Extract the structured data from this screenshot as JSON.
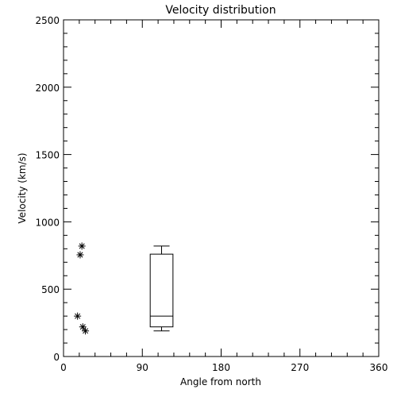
{
  "chart_data": {
    "type": "scatter",
    "title": "Velocity distribution",
    "xlabel": "Angle from north",
    "ylabel": "Velocity (km/s)",
    "xlim": [
      0,
      360
    ],
    "ylim": [
      0,
      2500
    ],
    "x_ticks": [
      0,
      90,
      180,
      270,
      360
    ],
    "y_ticks": [
      0,
      500,
      1000,
      1500,
      2000,
      2500
    ],
    "x_tick_labels": [
      "0",
      "90",
      "180",
      "270",
      "360"
    ],
    "y_tick_labels": [
      "0",
      "500",
      "1000",
      "1500",
      "2000",
      "2500"
    ],
    "grid": false,
    "points": [
      {
        "x": 21,
        "y": 820
      },
      {
        "x": 19,
        "y": 755
      },
      {
        "x": 16,
        "y": 300
      },
      {
        "x": 22,
        "y": 220
      },
      {
        "x": 25,
        "y": 190
      }
    ],
    "boxplot": {
      "x_center": 112,
      "x_width": 26,
      "min": 190,
      "q1": 220,
      "median": 300,
      "q3": 760,
      "max": 820
    }
  }
}
